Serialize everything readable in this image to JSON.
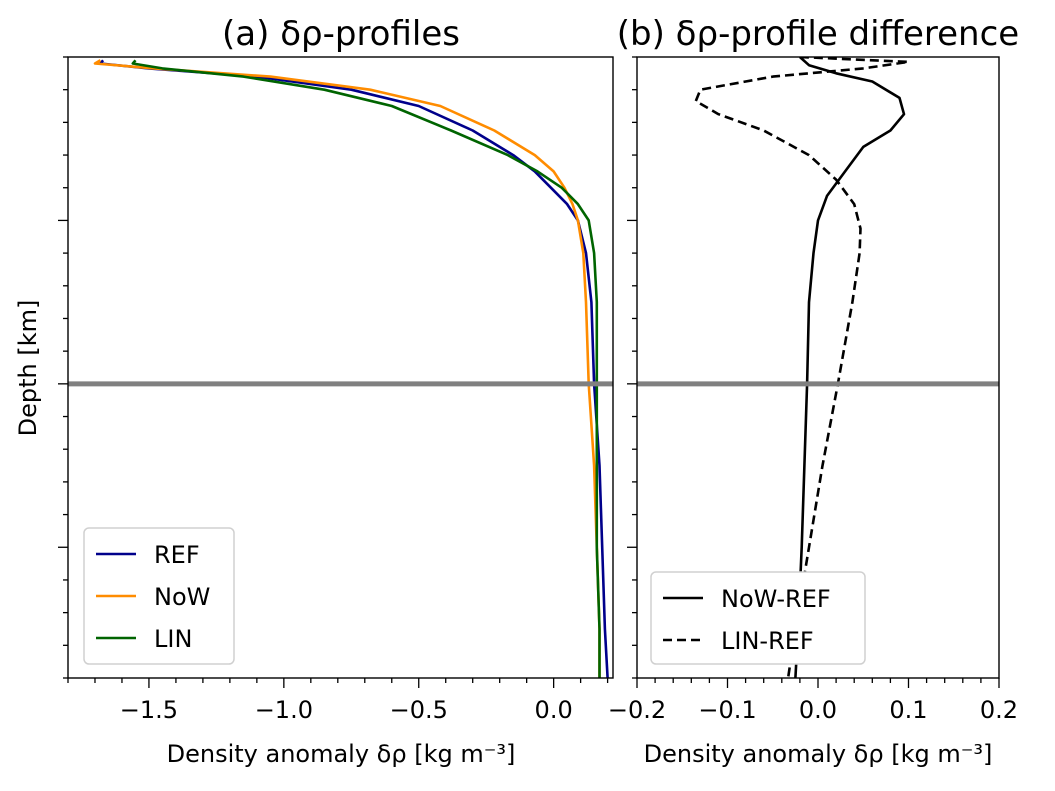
{
  "ylabel": "Depth [km]",
  "colors": {
    "REF": "#00008b",
    "NoW": "#ff8c00",
    "LIN": "#006400",
    "diff": "#000000",
    "refline": "#808080"
  },
  "chart_data": [
    {
      "type": "line",
      "title": "(a) δρ-profiles",
      "xlabel": "Density anomaly δρ [kg m⁻³]",
      "ylabel": "Depth [km]",
      "xlim": [
        -1.8,
        0.22
      ],
      "xticks": [
        -1.5,
        -1.0,
        -0.5,
        0.0
      ],
      "xtick_labels": [
        "−1.5",
        "−1.0",
        "−0.5",
        "0.0"
      ],
      "ylim": [
        3.8,
        0
      ],
      "y_major_ticks": [
        1.0,
        2.0,
        3.0
      ],
      "horizontal_line": 2.0,
      "legend_position": "lower-left",
      "series": [
        {
          "name": "REF",
          "color": "REF",
          "dash": "solid",
          "y": [
            0.02,
            0.04,
            0.07,
            0.12,
            0.2,
            0.3,
            0.45,
            0.6,
            0.7,
            0.8,
            0.9,
            1.0,
            1.2,
            1.5,
            2.0,
            2.5,
            3.0,
            3.5,
            3.8
          ],
          "x": [
            -1.67,
            -1.68,
            -1.5,
            -1.1,
            -0.75,
            -0.5,
            -0.3,
            -0.15,
            -0.07,
            -0.01,
            0.05,
            0.09,
            0.12,
            0.14,
            0.15,
            0.17,
            0.18,
            0.19,
            0.2
          ]
        },
        {
          "name": "NoW",
          "color": "NoW",
          "dash": "solid",
          "y": [
            0.02,
            0.04,
            0.07,
            0.12,
            0.2,
            0.3,
            0.45,
            0.6,
            0.7,
            0.8,
            0.9,
            1.0,
            1.2,
            1.5,
            2.0,
            2.5,
            3.0,
            3.5,
            3.8
          ],
          "x": [
            -1.68,
            -1.7,
            -1.48,
            -1.05,
            -0.68,
            -0.42,
            -0.22,
            -0.07,
            0.0,
            0.04,
            0.07,
            0.09,
            0.11,
            0.12,
            0.13,
            0.15,
            0.16,
            0.17,
            0.17
          ]
        },
        {
          "name": "LIN",
          "color": "LIN",
          "dash": "solid",
          "y": [
            0.02,
            0.04,
            0.07,
            0.12,
            0.2,
            0.3,
            0.45,
            0.6,
            0.7,
            0.8,
            0.9,
            1.0,
            1.2,
            1.5,
            2.0,
            2.5,
            3.0,
            3.5,
            3.8
          ],
          "x": [
            -1.55,
            -1.56,
            -1.45,
            -1.15,
            -0.85,
            -0.6,
            -0.38,
            -0.17,
            -0.06,
            0.03,
            0.09,
            0.13,
            0.15,
            0.16,
            0.16,
            0.16,
            0.16,
            0.17,
            0.17
          ]
        }
      ]
    },
    {
      "type": "line",
      "title": "(b) δρ-profile difference",
      "xlabel": "Density anomaly δρ [kg m⁻³]",
      "xlim": [
        -0.2,
        0.2
      ],
      "xticks": [
        -0.2,
        -0.1,
        0.0,
        0.1,
        0.2
      ],
      "xtick_labels": [
        "−0.2",
        "−0.1",
        "0.0",
        "0.1",
        "0.2"
      ],
      "ylim": [
        3.8,
        0
      ],
      "y_major_ticks": [
        1.0,
        2.0,
        3.0
      ],
      "horizontal_line": 2.0,
      "legend_position": "lower-left",
      "series": [
        {
          "name": "NoW-REF",
          "color": "diff",
          "dash": "solid",
          "y": [
            0.0,
            0.05,
            0.1,
            0.15,
            0.25,
            0.35,
            0.45,
            0.55,
            0.7,
            0.85,
            1.0,
            1.2,
            1.5,
            2.0,
            2.5,
            3.0,
            3.5,
            3.8
          ],
          "x": [
            -0.02,
            -0.01,
            0.02,
            0.06,
            0.09,
            0.095,
            0.08,
            0.05,
            0.03,
            0.01,
            0.0,
            -0.005,
            -0.01,
            -0.012,
            -0.015,
            -0.018,
            -0.022,
            -0.025
          ]
        },
        {
          "name": "LIN-REF",
          "color": "diff",
          "dash": "dashed",
          "y": [
            0.0,
            0.03,
            0.07,
            0.12,
            0.2,
            0.27,
            0.35,
            0.45,
            0.6,
            0.75,
            0.9,
            1.05,
            1.2,
            1.5,
            2.0,
            2.5,
            3.0,
            3.5,
            3.8
          ],
          "x": [
            -0.02,
            0.1,
            0.05,
            -0.05,
            -0.13,
            -0.135,
            -0.11,
            -0.06,
            -0.01,
            0.02,
            0.04,
            0.047,
            0.046,
            0.038,
            0.022,
            0.005,
            -0.01,
            -0.025,
            -0.033
          ]
        }
      ]
    }
  ]
}
